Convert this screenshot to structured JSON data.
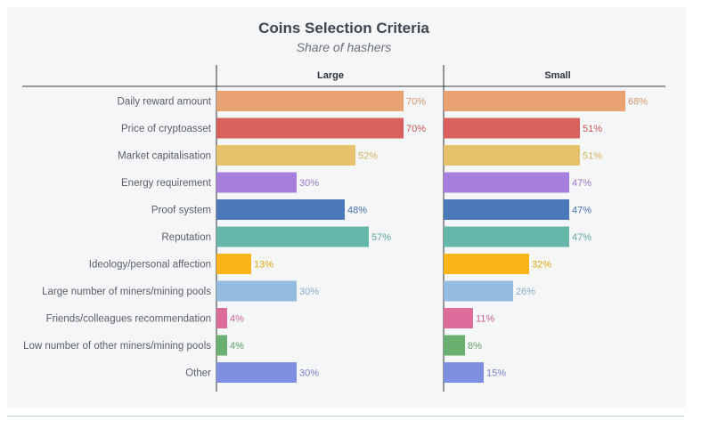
{
  "chart_data": {
    "type": "bar",
    "orientation": "horizontal",
    "title": "Coins Selection Criteria",
    "subtitle": "Share of hashers",
    "categories": [
      "Daily reward amount",
      "Price of cryptoasset",
      "Market capitalisation",
      "Energy requirement",
      "Proof system",
      "Reputation",
      "Ideology/personal affection",
      "Large number of miners/mining pools",
      "Friends/colleagues recommendation",
      "Low number of other miners/mining pools",
      "Other"
    ],
    "colors": [
      "#e8a271",
      "#d9605c",
      "#e8c16c",
      "#a77fdf",
      "#4b79b8",
      "#66b6aa",
      "#f8b419",
      "#93bce0",
      "#de6c9a",
      "#69b070",
      "#7f8fe0"
    ],
    "series": [
      {
        "name": "Large",
        "values": [
          70,
          70,
          52,
          30,
          48,
          57,
          13,
          30,
          4,
          4,
          30
        ],
        "labels": [
          "70%",
          "70%",
          "52%",
          "30%",
          "48%",
          "57%",
          "13%",
          "30%",
          "4%",
          "4%",
          "30%"
        ]
      },
      {
        "name": "Small",
        "values": [
          68,
          51,
          51,
          47,
          47,
          47,
          32,
          26,
          11,
          8,
          15
        ],
        "labels": [
          "68%",
          "51%",
          "51%",
          "47%",
          "47%",
          "47%",
          "32%",
          "26%",
          "11%",
          "8%",
          "15%"
        ]
      }
    ],
    "xlim": [
      0,
      100
    ],
    "grid": false,
    "legend": "none"
  }
}
